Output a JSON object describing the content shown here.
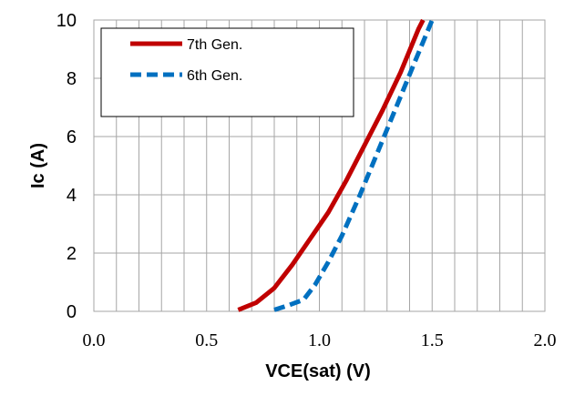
{
  "chart_data": {
    "type": "line",
    "xlabel": "VCE(sat) (V)",
    "ylabel": "Ic (A)",
    "xlim": [
      0,
      2.0
    ],
    "ylim": [
      0,
      10
    ],
    "x_ticks": [
      "0.0",
      "0.5",
      "1.0",
      "1.5",
      "2.0"
    ],
    "y_ticks": [
      "0",
      "2",
      "4",
      "6",
      "8",
      "10"
    ],
    "grid": "vertical minor every 0.1, horizontal every 2",
    "legend_position": "top-left",
    "series": [
      {
        "name": "7th Gen.",
        "color": "#c00000",
        "style": "solid",
        "points": [
          [
            0.64,
            0.05
          ],
          [
            0.72,
            0.3
          ],
          [
            0.8,
            0.8
          ],
          [
            0.88,
            1.6
          ],
          [
            0.96,
            2.5
          ],
          [
            1.04,
            3.4
          ],
          [
            1.12,
            4.5
          ],
          [
            1.2,
            5.7
          ],
          [
            1.28,
            6.9
          ],
          [
            1.36,
            8.2
          ],
          [
            1.44,
            9.7
          ],
          [
            1.46,
            10.0
          ]
        ]
      },
      {
        "name": "6th Gen.",
        "color": "#0070c0",
        "style": "dashed",
        "points": [
          [
            0.8,
            0.05
          ],
          [
            0.86,
            0.2
          ],
          [
            0.93,
            0.4
          ],
          [
            0.98,
            0.9
          ],
          [
            1.04,
            1.7
          ],
          [
            1.1,
            2.6
          ],
          [
            1.18,
            4.0
          ],
          [
            1.26,
            5.5
          ],
          [
            1.34,
            7.0
          ],
          [
            1.42,
            8.5
          ],
          [
            1.5,
            10.0
          ]
        ]
      }
    ]
  }
}
